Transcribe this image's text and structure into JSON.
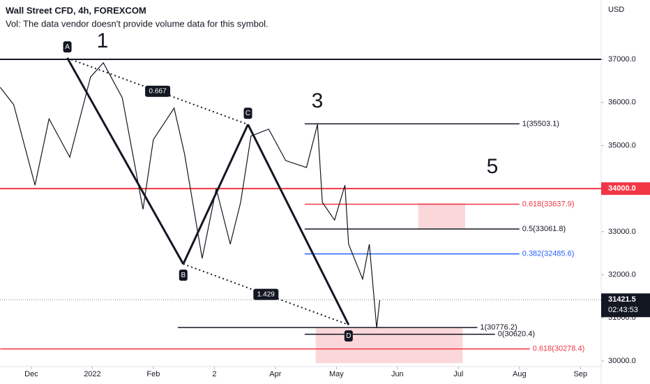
{
  "chart_data": {
    "type": "line",
    "title": "Wall Street CFD, 4h, FOREXCOM",
    "subtitle": "Vol: The data vendor doesn't provide volume data for this symbol.",
    "y_axis_label": "USD",
    "x": [
      -0.51,
      -0.29,
      0.06,
      0.29,
      0.63,
      0.97,
      1.18,
      1.49,
      1.83,
      2.0,
      2.34,
      2.51,
      2.8,
      3.03,
      3.26,
      3.43,
      3.6,
      3.89,
      4.17,
      4.51,
      4.69,
      4.77,
      4.97,
      5.14,
      5.2,
      5.43,
      5.54,
      5.66,
      5.71
    ],
    "series": [
      {
        "color": "#131722",
        "values": [
          36350,
          35950,
          34080,
          35620,
          34730,
          36590,
          36920,
          36110,
          33520,
          35140,
          35870,
          34810,
          32380,
          34000,
          32710,
          33680,
          35220,
          35380,
          34650,
          34490,
          35490,
          33680,
          33270,
          34080,
          32710,
          31900,
          32710,
          30760,
          31410
        ]
      }
    ],
    "xlim": [
      -0.514,
      9.34
    ],
    "xticks": [
      {
        "value": 0,
        "label": "Dec"
      },
      {
        "value": 1,
        "label": "2022"
      },
      {
        "value": 2,
        "label": "Feb"
      },
      {
        "value": 3,
        "label": "2"
      },
      {
        "value": 4,
        "label": "Apr"
      },
      {
        "value": 5,
        "label": "May"
      },
      {
        "value": 6,
        "label": "Jun"
      },
      {
        "value": 7,
        "label": "Jul"
      },
      {
        "value": 8,
        "label": "Aug"
      },
      {
        "value": 9,
        "label": "Sep"
      }
    ],
    "ylim": [
      29870,
      38378
    ],
    "yticks": [
      {
        "value": 30000,
        "label": "30000.0"
      },
      {
        "value": 31000,
        "label": "31000.0"
      },
      {
        "value": 32000,
        "label": "32000.0"
      },
      {
        "value": 33000,
        "label": "33000.0"
      },
      {
        "value": 35000,
        "label": "35000.0"
      },
      {
        "value": 36000,
        "label": "36000.0"
      },
      {
        "value": 37000,
        "label": "37000.0"
      }
    ],
    "full_lines": [
      {
        "value": 37000,
        "color": "#131722"
      },
      {
        "value": 34000,
        "color": "#f23645",
        "label": "34000.0"
      }
    ],
    "current_price": {
      "value": 31421.5,
      "label": "31421.5",
      "countdown": "02:43:53"
    },
    "levels": [
      {
        "label": "1(35503.1)",
        "value": 35503.1,
        "color": "#131722",
        "x1": 4.48,
        "x2": 8.0
      },
      {
        "label": "0.618(33637.9)",
        "value": 33637.9,
        "color": "#f23645",
        "x1": 4.48,
        "x2": 8.0
      },
      {
        "label": "0.5(33061.8)",
        "value": 33061.8,
        "color": "#131722",
        "x1": 4.48,
        "x2": 8.0
      },
      {
        "label": "0.382(32485.6)",
        "value": 32485.6,
        "color": "#2962ff",
        "x1": 4.48,
        "x2": 8.0
      },
      {
        "label": "1(30776.2)",
        "value": 30776.2,
        "color": "#131722",
        "x1": 2.4,
        "x2": 7.31
      },
      {
        "label": "0(30620.4)",
        "value": 30620.4,
        "color": "#131722",
        "x1": 4.48,
        "x2": 7.6
      },
      {
        "label": "0.618(30278.4)",
        "value": 30278.4,
        "color": "#f23645",
        "x1": -0.51,
        "x2": 8.17
      }
    ],
    "zones": [
      {
        "x1": 6.34,
        "x2": 7.11,
        "y1": 33660,
        "y2": 33060
      },
      {
        "x1": 4.66,
        "x2": 7.07,
        "y1": 30760,
        "y2": 29950
      }
    ],
    "pattern": {
      "points": [
        {
          "label": "A",
          "x": 0.59,
          "y": 37030
        },
        {
          "label": "B",
          "x": 2.49,
          "y": 32250
        },
        {
          "label": "C",
          "x": 3.55,
          "y": 35490
        },
        {
          "label": "D",
          "x": 5.2,
          "y": 30840
        }
      ],
      "ratios": [
        "0.667",
        "1.429"
      ]
    },
    "wave_labels": [
      "1",
      "3",
      "5"
    ]
  }
}
